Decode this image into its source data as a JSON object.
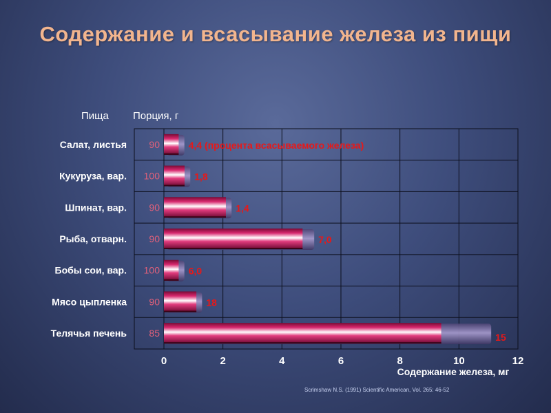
{
  "title": "Содержание и всасывание железа из пищи",
  "headers": {
    "food": "Пища",
    "portion": "Порция, г"
  },
  "credit": "Scrimshaw N.S. (1991) Scientific American, Vol. 265: 46-52",
  "chart_data": {
    "type": "bar",
    "orientation": "horizontal",
    "categories": [
      "Салат, листья",
      "Кукуруза, вар.",
      "Шпинат, вар.",
      "Рыба, отварн.",
      "Бобы сои, вар.",
      "Мясо цыпленка",
      "Телячья печень"
    ],
    "portions": [
      "90",
      "100",
      "90",
      "90",
      "100",
      "90",
      "85"
    ],
    "values": [
      0.5,
      0.7,
      2.1,
      4.7,
      0.5,
      1.1,
      9.4
    ],
    "shadow_values": [
      0.6,
      0.8,
      2.2,
      5.0,
      0.6,
      1.2,
      11.0
    ],
    "data_labels": [
      "4,4 (процента всасываемого железа)",
      "1,8",
      "1,4",
      "7,0",
      "6,0",
      "18",
      "15"
    ],
    "xlabel": "Содержание железа,  мг",
    "xticks": [
      "0",
      "2",
      "4",
      "6",
      "8",
      "10",
      "12"
    ],
    "xlim": [
      0,
      12
    ],
    "grid": true,
    "colors": {
      "bar": "#c0185a",
      "bar_highlight": "#ffffff",
      "shadow": "#7a6aa0",
      "label": "#e81818",
      "portion": "#e0607a",
      "axis_text": "#ffffff",
      "title": "#f2b58e"
    }
  }
}
